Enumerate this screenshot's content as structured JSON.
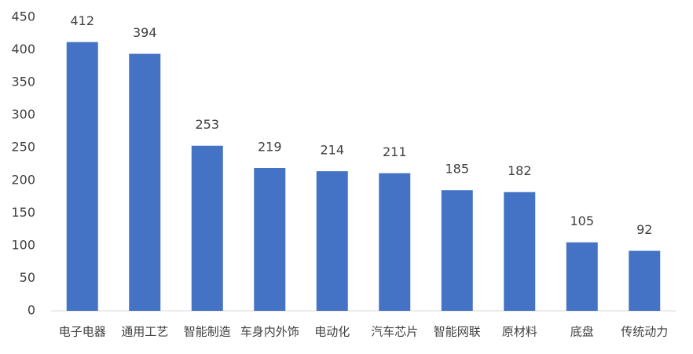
{
  "chart_data": {
    "type": "bar",
    "categories": [
      "电子电器",
      "通用工艺",
      "智能制造",
      "车身内外饰",
      "电动化",
      "汽车芯片",
      "智能网联",
      "原材料",
      "底盘",
      "传统动力"
    ],
    "values": [
      412,
      394,
      253,
      219,
      214,
      211,
      185,
      182,
      105,
      92
    ],
    "color": "#4472c4",
    "ylim": [
      0,
      450
    ],
    "yticks": [
      0,
      50,
      100,
      150,
      200,
      250,
      300,
      350,
      400,
      450
    ],
    "grid": false,
    "data_labels": true
  }
}
